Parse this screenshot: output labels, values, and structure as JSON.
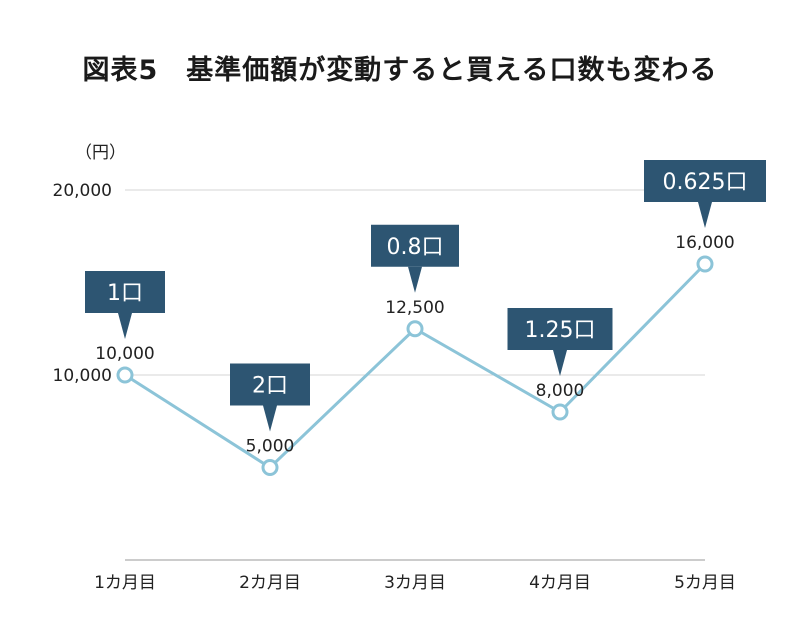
{
  "chart_data": {
    "type": "line",
    "title": "図表5　基準価額が変動すると買える口数も変わる",
    "ylabel": "（円）",
    "ylim": [
      0,
      20000
    ],
    "yticks": [
      {
        "value": 10000,
        "label": "10,000"
      },
      {
        "value": 20000,
        "label": "20,000"
      }
    ],
    "categories": [
      "1カ月目",
      "2カ月目",
      "3カ月目",
      "4カ月目",
      "5カ月目"
    ],
    "values": [
      10000,
      5000,
      12500,
      8000,
      16000
    ],
    "value_labels": [
      "10,000",
      "5,000",
      "12,500",
      "8,000",
      "16,000"
    ],
    "callouts": [
      "1口",
      "2口",
      "0.8口",
      "1.25口",
      "0.625口"
    ],
    "grid": true,
    "colors": {
      "line": "#8cc4d8",
      "callout": "#2d5572",
      "grid": "#d5d5d5",
      "axis": "#999999"
    }
  }
}
